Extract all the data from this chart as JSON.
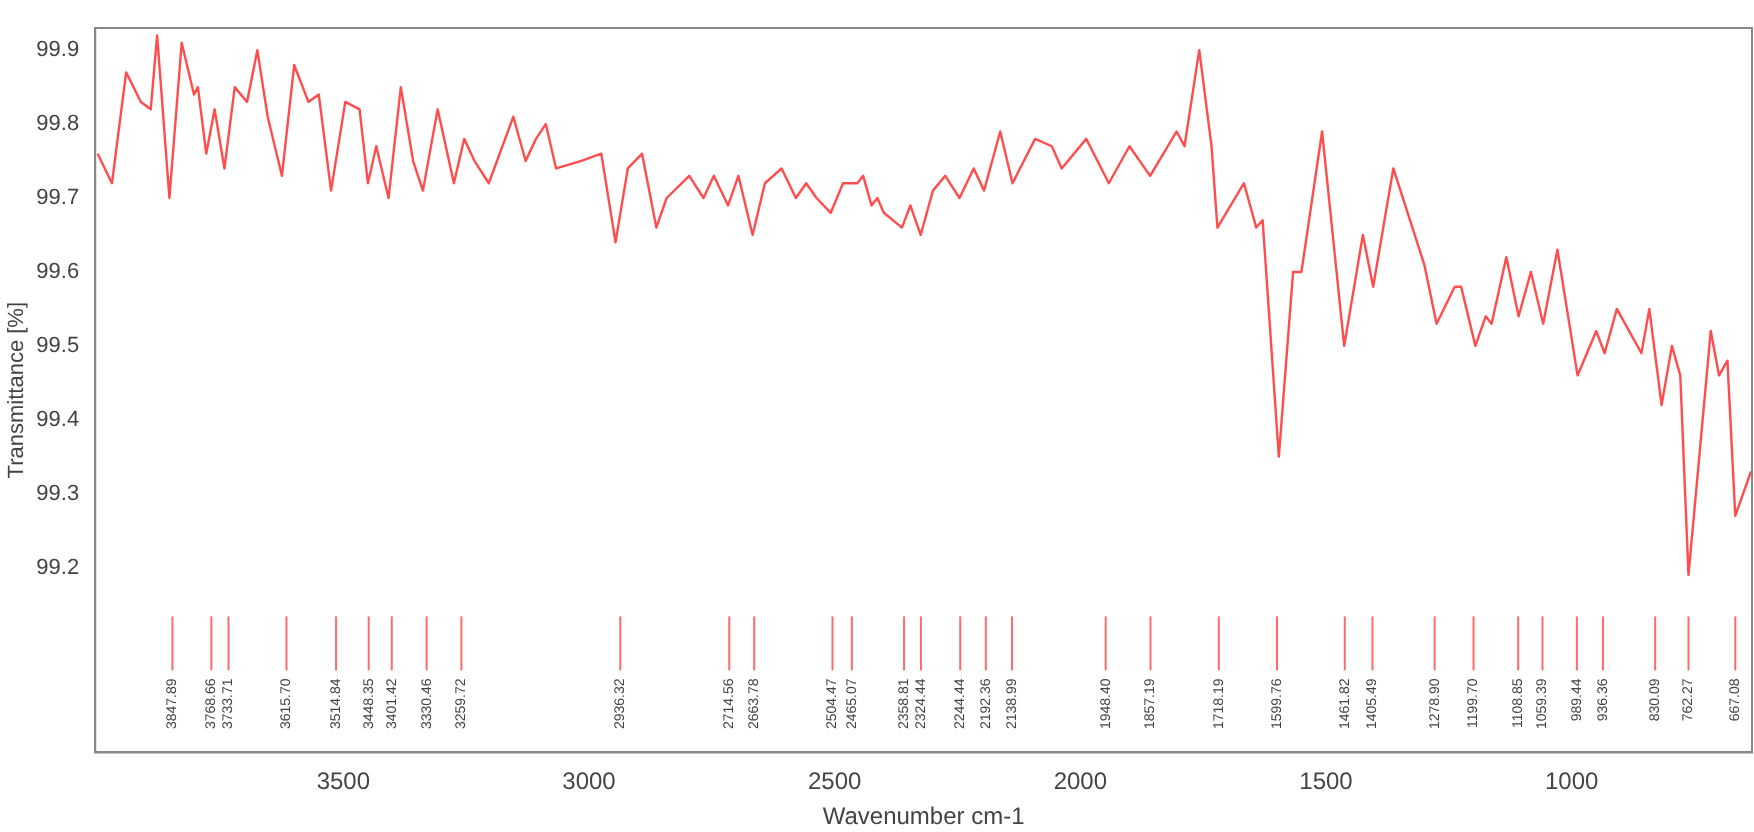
{
  "chart_data": {
    "type": "line",
    "xlabel": "Wavenumber cm-1",
    "ylabel": "Transmittance [%]",
    "x": [
      4000,
      3971,
      3942,
      3912,
      3892,
      3879,
      3854,
      3829,
      3804,
      3796,
      3779,
      3762,
      3742,
      3721,
      3696,
      3675,
      3654,
      3625,
      3600,
      3571,
      3550,
      3525,
      3496,
      3467,
      3450,
      3433,
      3408,
      3383,
      3358,
      3338,
      3308,
      3275,
      3254,
      3233,
      3204,
      3154,
      3129,
      3108,
      3088,
      3067,
      3017,
      2975,
      2946,
      2921,
      2892,
      2863,
      2842,
      2796,
      2767,
      2746,
      2717,
      2696,
      2667,
      2642,
      2608,
      2579,
      2558,
      2537,
      2508,
      2483,
      2454,
      2442,
      2425,
      2413,
      2400,
      2363,
      2346,
      2325,
      2300,
      2275,
      2246,
      2217,
      2196,
      2163,
      2138,
      2092,
      2058,
      2038,
      1988,
      1942,
      1900,
      1858,
      1804,
      1788,
      1758,
      1733,
      1721,
      1667,
      1642,
      1629,
      1596,
      1567,
      1550,
      1508,
      1463,
      1425,
      1404,
      1363,
      1300,
      1275,
      1238,
      1225,
      1196,
      1175,
      1163,
      1133,
      1108,
      1083,
      1058,
      1029,
      988,
      950,
      933,
      908,
      883,
      858,
      842,
      817,
      796,
      779,
      762.27,
      717,
      700,
      683,
      667.08,
      635
    ],
    "series": [
      {
        "color": "#ff4d4d",
        "values": [
          99.76,
          99.72,
          99.87,
          99.83,
          99.82,
          99.92,
          99.7,
          99.91,
          99.84,
          99.85,
          99.76,
          99.82,
          99.74,
          99.85,
          99.83,
          99.9,
          99.81,
          99.73,
          99.88,
          99.83,
          99.84,
          99.71,
          99.83,
          99.82,
          99.72,
          99.77,
          99.7,
          99.85,
          99.75,
          99.71,
          99.82,
          99.72,
          99.78,
          99.75,
          99.72,
          99.81,
          99.75,
          99.78,
          99.8,
          99.74,
          99.75,
          99.76,
          99.64,
          99.74,
          99.76,
          99.66,
          99.7,
          99.73,
          99.7,
          99.73,
          99.69,
          99.73,
          99.65,
          99.72,
          99.74,
          99.7,
          99.72,
          99.7,
          99.68,
          99.72,
          99.72,
          99.73,
          99.69,
          99.7,
          99.68,
          99.66,
          99.69,
          99.65,
          99.71,
          99.73,
          99.7,
          99.74,
          99.71,
          99.79,
          99.72,
          99.78,
          99.77,
          99.74,
          99.78,
          99.72,
          99.77,
          99.73,
          99.79,
          99.77,
          99.9,
          99.77,
          99.66,
          99.72,
          99.66,
          99.67,
          99.35,
          99.6,
          99.6,
          99.79,
          99.5,
          99.65,
          99.58,
          99.74,
          99.61,
          99.53,
          99.58,
          99.58,
          99.5,
          99.54,
          99.53,
          99.62,
          99.54,
          99.6,
          99.53,
          99.63,
          99.46,
          99.52,
          99.49,
          99.55,
          99.52,
          99.49,
          99.55,
          99.42,
          99.5,
          99.46,
          99.19,
          99.52,
          99.46,
          99.48,
          99.27,
          99.33
        ]
      }
    ],
    "xlim": [
      4005,
      633
    ],
    "xticks": [
      3500,
      3000,
      2500,
      2000,
      1500,
      1000
    ],
    "ylim": [
      98.95,
      99.93
    ],
    "yticks": [
      99.2,
      99.3,
      99.4,
      99.5,
      99.6,
      99.7,
      99.8,
      99.9
    ],
    "grid": false,
    "legend": false,
    "marker": "none",
    "line_style": "solid",
    "annotations": [
      {
        "text": "3847.89",
        "x": 3847.89
      },
      {
        "text": "3768.66",
        "x": 3768.66
      },
      {
        "text": "3733.71",
        "x": 3733.71
      },
      {
        "text": "3615.70",
        "x": 3615.7
      },
      {
        "text": "3514.84",
        "x": 3514.84
      },
      {
        "text": "3448.35",
        "x": 3448.35
      },
      {
        "text": "3401.42",
        "x": 3401.42
      },
      {
        "text": "3330.46",
        "x": 3330.46
      },
      {
        "text": "3259.72",
        "x": 3259.72
      },
      {
        "text": "2936.32",
        "x": 2936.32
      },
      {
        "text": "2714.56",
        "x": 2714.56
      },
      {
        "text": "2663.78",
        "x": 2663.78
      },
      {
        "text": "2504.47",
        "x": 2504.47
      },
      {
        "text": "2465.07",
        "x": 2465.07
      },
      {
        "text": "2358.81",
        "x": 2358.81
      },
      {
        "text": "2324.44",
        "x": 2324.44
      },
      {
        "text": "2244.44",
        "x": 2244.44
      },
      {
        "text": "2192.36",
        "x": 2192.36
      },
      {
        "text": "2138.99",
        "x": 2138.99
      },
      {
        "text": "1948.40",
        "x": 1948.4
      },
      {
        "text": "1857.19",
        "x": 1857.19
      },
      {
        "text": "1718.19",
        "x": 1718.19
      },
      {
        "text": "1599.76",
        "x": 1599.76
      },
      {
        "text": "1461.82",
        "x": 1461.82
      },
      {
        "text": "1405.49",
        "x": 1405.49
      },
      {
        "text": "1278.90",
        "x": 1278.9
      },
      {
        "text": "1199.70",
        "x": 1199.7
      },
      {
        "text": "1108.85",
        "x": 1108.85
      },
      {
        "text": "1059.39",
        "x": 1059.39
      },
      {
        "text": "989.44",
        "x": 989.44
      },
      {
        "text": "936.36",
        "x": 936.36
      },
      {
        "text": "830.09",
        "x": 830.09
      },
      {
        "text": "762.27",
        "x": 762.27
      },
      {
        "text": "667.08",
        "x": 667.08
      }
    ]
  }
}
